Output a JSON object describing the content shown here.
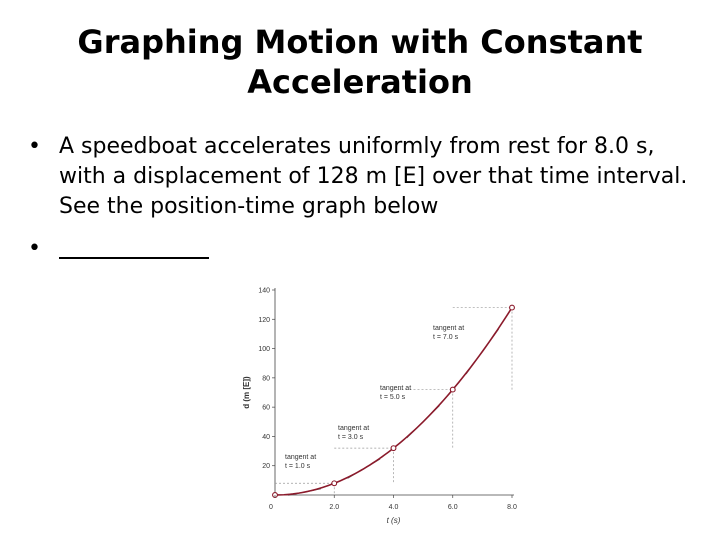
{
  "slide": {
    "title_line1": "Graphing Motion with Constant",
    "title_line2": "Acceleration",
    "bullet_symbol": "•",
    "bullet1": "A speedboat accelerates uniformly from rest for 8.0 s, with a displacement of 128 m [E] over that time interval.  See the position-time graph below"
  },
  "colors": {
    "curve": "#8b1a2b",
    "tangent": "#555555",
    "guide": "#9a9a9a"
  },
  "chart_data": {
    "type": "line",
    "xlabel": "t (s)",
    "ylabel": "d (m [E])",
    "xlim": [
      0,
      8
    ],
    "ylim": [
      0,
      140
    ],
    "xticks": [
      "0",
      "2.0",
      "4.0",
      "6.0",
      "8.0"
    ],
    "yticks": [
      "20",
      "40",
      "60",
      "80",
      "100",
      "120",
      "140"
    ],
    "grid": false,
    "series": [
      {
        "x": [
          0,
          2,
          4,
          6,
          8
        ],
        "y": [
          0,
          8,
          32,
          72,
          128
        ]
      }
    ],
    "tangents": [
      {
        "t": 1.0,
        "label_line1": "tangent at",
        "label_line2": "t = 1.0 s"
      },
      {
        "t": 3.0,
        "label_line1": "tangent at",
        "label_line2": "t = 3.0 s"
      },
      {
        "t": 5.0,
        "label_line1": "tangent at",
        "label_line2": "t = 5.0 s"
      },
      {
        "t": 7.0,
        "label_line1": "tangent at",
        "label_line2": "t = 7.0 s"
      }
    ]
  }
}
